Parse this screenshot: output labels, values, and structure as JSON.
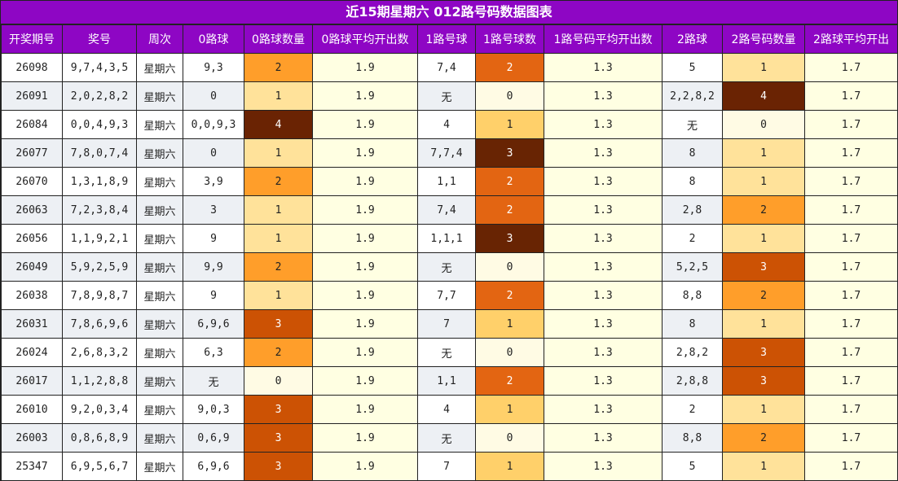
{
  "title": "近15期星期六 012路号码数据图表",
  "headers": [
    "开奖期号",
    "奖号",
    "周次",
    "0路球",
    "0路球数量",
    "0路球平均开出数",
    "1路号球",
    "1路号球数",
    "1路号码平均开出数",
    "2路球",
    "2路号码数量",
    "2路球平均开出"
  ],
  "rows": [
    {
      "period": "26098",
      "numbers": "9,7,4,3,5",
      "week": "星期六",
      "r0": "9,3",
      "c0": "2",
      "a0": "1.9",
      "r1": "7,4",
      "c1": "2",
      "a1": "1.3",
      "r2": "5",
      "c2": "1",
      "a2": "1.7"
    },
    {
      "period": "26091",
      "numbers": "2,0,2,8,2",
      "week": "星期六",
      "r0": "0",
      "c0": "1",
      "a0": "1.9",
      "r1": "无",
      "c1": "0",
      "a1": "1.3",
      "r2": "2,2,8,2",
      "c2": "4",
      "a2": "1.7"
    },
    {
      "period": "26084",
      "numbers": "0,0,4,9,3",
      "week": "星期六",
      "r0": "0,0,9,3",
      "c0": "4",
      "a0": "1.9",
      "r1": "4",
      "c1": "1",
      "a1": "1.3",
      "r2": "无",
      "c2": "0",
      "a2": "1.7"
    },
    {
      "period": "26077",
      "numbers": "7,8,0,7,4",
      "week": "星期六",
      "r0": "0",
      "c0": "1",
      "a0": "1.9",
      "r1": "7,7,4",
      "c1": "3",
      "a1": "1.3",
      "r2": "8",
      "c2": "1",
      "a2": "1.7"
    },
    {
      "period": "26070",
      "numbers": "1,3,1,8,9",
      "week": "星期六",
      "r0": "3,9",
      "c0": "2",
      "a0": "1.9",
      "r1": "1,1",
      "c1": "2",
      "a1": "1.3",
      "r2": "8",
      "c2": "1",
      "a2": "1.7"
    },
    {
      "period": "26063",
      "numbers": "7,2,3,8,4",
      "week": "星期六",
      "r0": "3",
      "c0": "1",
      "a0": "1.9",
      "r1": "7,4",
      "c1": "2",
      "a1": "1.3",
      "r2": "2,8",
      "c2": "2",
      "a2": "1.7"
    },
    {
      "period": "26056",
      "numbers": "1,1,9,2,1",
      "week": "星期六",
      "r0": "9",
      "c0": "1",
      "a0": "1.9",
      "r1": "1,1,1",
      "c1": "3",
      "a1": "1.3",
      "r2": "2",
      "c2": "1",
      "a2": "1.7"
    },
    {
      "period": "26049",
      "numbers": "5,9,2,5,9",
      "week": "星期六",
      "r0": "9,9",
      "c0": "2",
      "a0": "1.9",
      "r1": "无",
      "c1": "0",
      "a1": "1.3",
      "r2": "5,2,5",
      "c2": "3",
      "a2": "1.7"
    },
    {
      "period": "26038",
      "numbers": "7,8,9,8,7",
      "week": "星期六",
      "r0": "9",
      "c0": "1",
      "a0": "1.9",
      "r1": "7,7",
      "c1": "2",
      "a1": "1.3",
      "r2": "8,8",
      "c2": "2",
      "a2": "1.7"
    },
    {
      "period": "26031",
      "numbers": "7,8,6,9,6",
      "week": "星期六",
      "r0": "6,9,6",
      "c0": "3",
      "a0": "1.9",
      "r1": "7",
      "c1": "1",
      "a1": "1.3",
      "r2": "8",
      "c2": "1",
      "a2": "1.7"
    },
    {
      "period": "26024",
      "numbers": "2,6,8,3,2",
      "week": "星期六",
      "r0": "6,3",
      "c0": "2",
      "a0": "1.9",
      "r1": "无",
      "c1": "0",
      "a1": "1.3",
      "r2": "2,8,2",
      "c2": "3",
      "a2": "1.7"
    },
    {
      "period": "26017",
      "numbers": "1,1,2,8,8",
      "week": "星期六",
      "r0": "无",
      "c0": "0",
      "a0": "1.9",
      "r1": "1,1",
      "c1": "2",
      "a1": "1.3",
      "r2": "2,8,8",
      "c2": "3",
      "a2": "1.7"
    },
    {
      "period": "26010",
      "numbers": "9,2,0,3,4",
      "week": "星期六",
      "r0": "9,0,3",
      "c0": "3",
      "a0": "1.9",
      "r1": "4",
      "c1": "1",
      "a1": "1.3",
      "r2": "2",
      "c2": "1",
      "a2": "1.7"
    },
    {
      "period": "26003",
      "numbers": "0,8,6,8,9",
      "week": "星期六",
      "r0": "0,6,9",
      "c0": "3",
      "a0": "1.9",
      "r1": "无",
      "c1": "0",
      "a1": "1.3",
      "r2": "8,8",
      "c2": "2",
      "a2": "1.7"
    },
    {
      "period": "25347",
      "numbers": "6,9,5,6,7",
      "week": "星期六",
      "r0": "6,9,6",
      "c0": "3",
      "a0": "1.9",
      "r1": "7",
      "c1": "1",
      "a1": "1.3",
      "r2": "5",
      "c2": "1",
      "a2": "1.7"
    }
  ],
  "colors": {
    "header_bg": "#8e06c4",
    "count_scale_a": [
      "#fffbe4",
      "#ffe29a",
      "#ff9e2a",
      "#cc5204",
      "#6a2303"
    ],
    "count_scale_b": [
      "#fffbe4",
      "#ffd06a",
      "#e36512",
      "#682403"
    ],
    "avg_bg": "#ffffe2"
  }
}
